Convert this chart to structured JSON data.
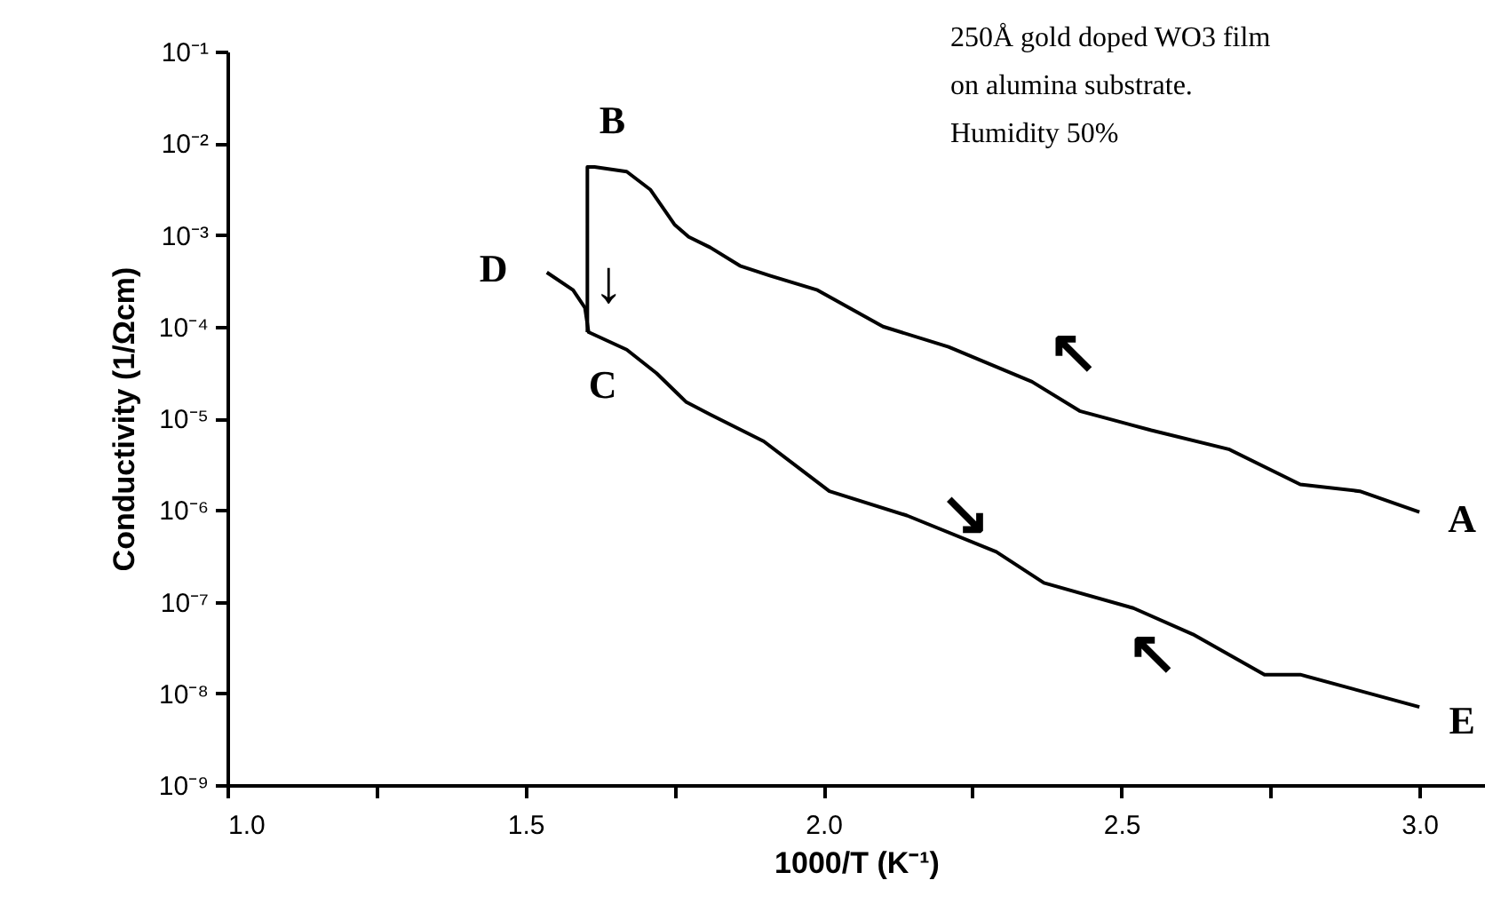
{
  "chart_data": {
    "type": "line",
    "xlabel": "1000/T    (K⁻¹)",
    "ylabel": "Conductivity    (1/Ωcm)",
    "log": "y",
    "grid": false,
    "marker": "none",
    "line_style": "solid",
    "xlim": [
      1.0,
      3.11
    ],
    "ylim": [
      1e-09,
      0.1
    ],
    "xticks": [
      {
        "value": 1.0,
        "label": "1.0"
      },
      {
        "value": 1.25,
        "label": null
      },
      {
        "value": 1.5,
        "label": "1.5"
      },
      {
        "value": 1.75,
        "label": null
      },
      {
        "value": 2.0,
        "label": "2.0"
      },
      {
        "value": 2.25,
        "label": null
      },
      {
        "value": 2.5,
        "label": "2.5"
      },
      {
        "value": 2.75,
        "label": null
      },
      {
        "value": 3.0,
        "label": "3.0"
      }
    ],
    "yticks": [
      {
        "value": 0.1,
        "label": "10⁻¹"
      },
      {
        "value": 0.01,
        "label": "10⁻²"
      },
      {
        "value": 0.001,
        "label": "10⁻³"
      },
      {
        "value": 0.0001,
        "label": "10⁻⁴"
      },
      {
        "value": 1e-05,
        "label": "10⁻⁵"
      },
      {
        "value": 1e-06,
        "label": "10⁻⁶"
      },
      {
        "value": 1e-07,
        "label": "10⁻⁷"
      },
      {
        "value": 1e-08,
        "label": "10⁻⁸"
      },
      {
        "value": 1e-09,
        "label": "10⁻⁹"
      }
    ],
    "series": [
      {
        "color": "#000000",
        "x": [
          1.604,
          1.604,
          1.616,
          1.67,
          1.71,
          1.75,
          1.774,
          1.81,
          1.86,
          1.91,
          1.99,
          2.1,
          2.21,
          2.35,
          2.43,
          2.55,
          2.68,
          2.8,
          2.9,
          3.0
        ],
        "values": [
          8.7e-05,
          0.0055,
          0.0055,
          0.0049,
          0.0031,
          0.0013,
          0.00095,
          0.00073,
          0.00046,
          0.00036,
          0.00025,
          0.0001,
          6e-05,
          2.5e-05,
          1.2e-05,
          7.4e-06,
          4.6e-06,
          1.9e-06,
          1.6e-06,
          9.5e-07
        ]
      },
      {
        "color": "#000000",
        "x": [
          1.536,
          1.58,
          1.6,
          1.606,
          1.67,
          1.72,
          1.77,
          1.81,
          1.9,
          2.01,
          2.14,
          2.29,
          2.37,
          2.52,
          2.62,
          2.74,
          2.8,
          3.0
        ],
        "values": [
          0.00039,
          0.00025,
          0.00016,
          8.7e-05,
          5.6e-05,
          3.1e-05,
          1.5e-05,
          1.1e-05,
          5.6e-06,
          1.6e-06,
          8.7e-07,
          3.5e-07,
          1.6e-07,
          8.5e-08,
          4.4e-08,
          1.6e-08,
          1.6e-08,
          7.1e-09
        ]
      }
    ],
    "annotations": [
      "250Å gold doped WO3 film\non alumina substrate.\nHumidity  50%",
      {
        "text": "A",
        "x": 3.0,
        "y": 9.5e-07
      },
      {
        "text": "B",
        "x": 1.604,
        "y": 0.0055
      },
      {
        "text": "C",
        "x": 1.606,
        "y": 8.7e-05
      },
      {
        "text": "D",
        "x": 1.536,
        "y": 0.00039
      },
      {
        "text": "E",
        "x": 3.0,
        "y": 7.1e-09
      },
      {
        "text": "↓",
        "x": 1.604,
        "y": 0.0055
      },
      {
        "text": "↖",
        "x": 2.43,
        "y": 1.2e-05
      },
      {
        "text": "↘",
        "x": 2.29,
        "y": 3.5e-07
      },
      {
        "text": "↖",
        "x": 2.62,
        "y": 4.4e-08
      }
    ]
  }
}
